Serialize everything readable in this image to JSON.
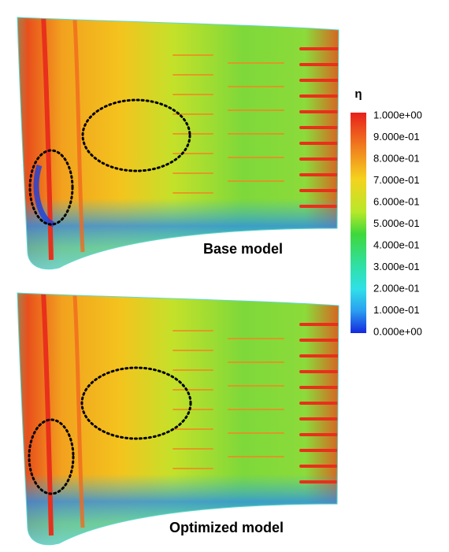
{
  "panels": [
    {
      "label": "Base model"
    },
    {
      "label": "Optimized model"
    }
  ],
  "colorbar": {
    "title": "η",
    "labels": [
      "1.000e+00",
      "9.000e-01",
      "8.000e-01",
      "7.000e-01",
      "6.000e-01",
      "5.000e-01",
      "4.000e-01",
      "3.000e-01",
      "2.000e-01",
      "1.000e-01",
      "0.000e+00"
    ]
  }
}
